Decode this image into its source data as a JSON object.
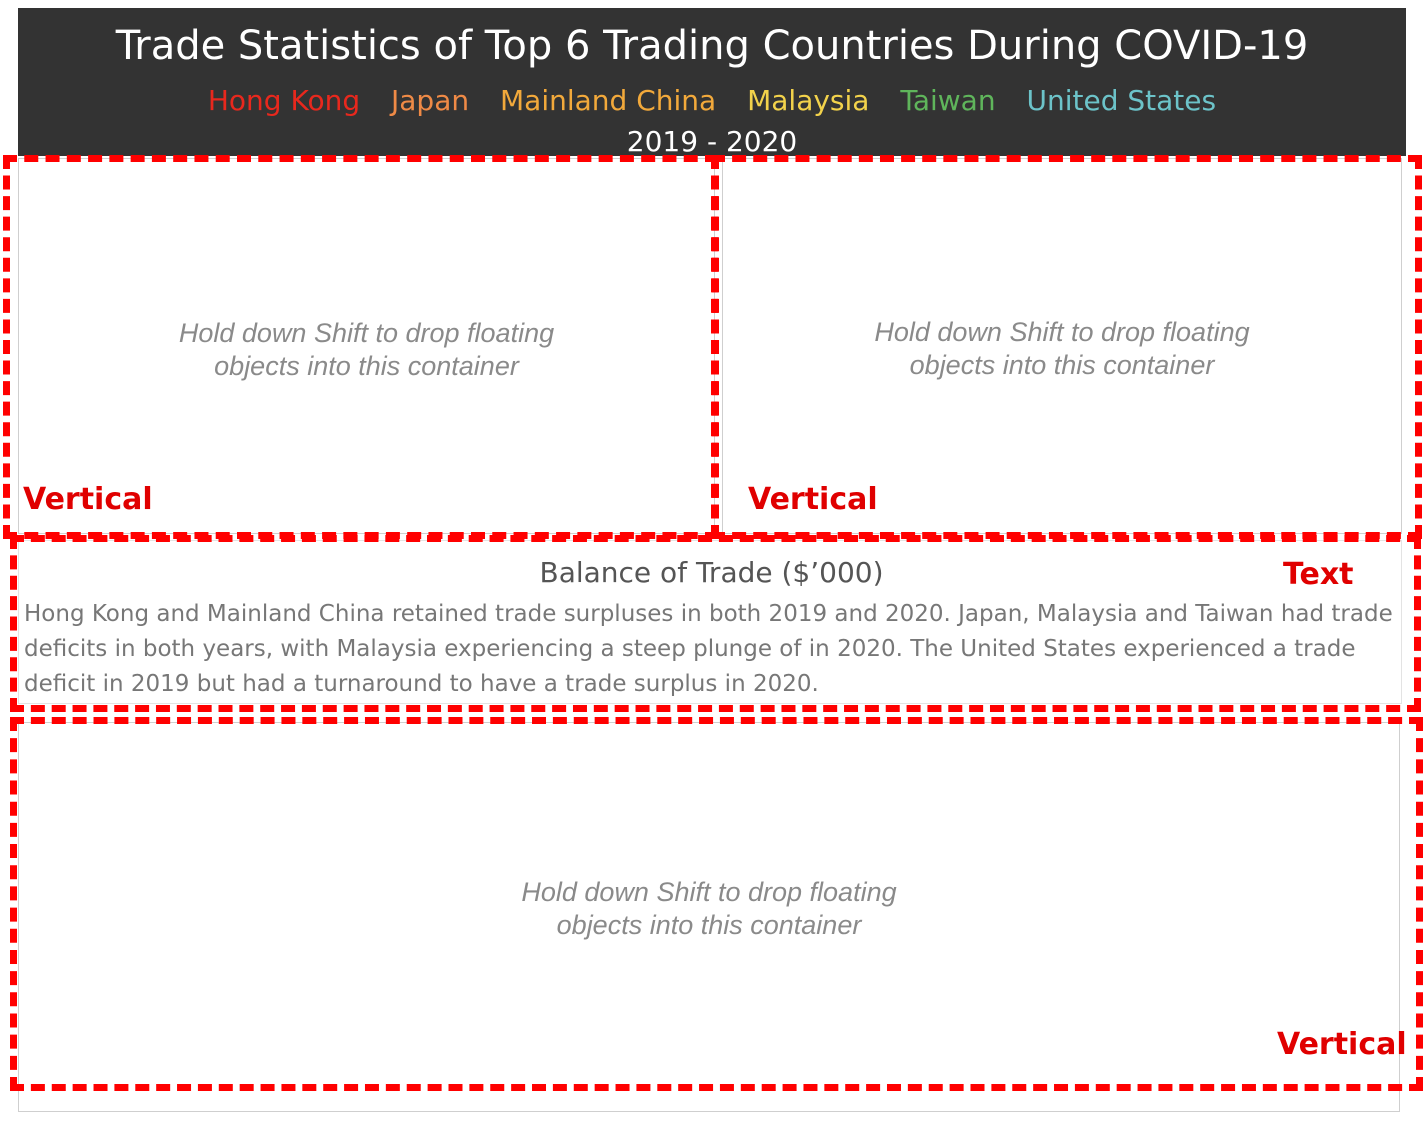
{
  "header": {
    "title": "Trade Statistics of Top 6 Trading Countries During COVID-19",
    "legend": [
      {
        "label": "Hong Kong",
        "color": "#e8281d"
      },
      {
        "label": "Japan",
        "color": "#ef8a46"
      },
      {
        "label": "Mainland China",
        "color": "#f2a93b"
      },
      {
        "label": "Malaysia",
        "color": "#f2d24b"
      },
      {
        "label": "Taiwan",
        "color": "#5fb55b"
      },
      {
        "label": "United States",
        "color": "#6cc3c9"
      }
    ],
    "years": "2019 - 2020"
  },
  "containers": {
    "top_left": {
      "placeholder_line1": "Hold down Shift to drop floating",
      "placeholder_line2": "objects into this container",
      "tag": "Vertical"
    },
    "top_right": {
      "placeholder_line1": "Hold down Shift to drop floating",
      "placeholder_line2": "objects into this container",
      "tag": "Vertical"
    },
    "bottom": {
      "placeholder_line1": "Hold down Shift to drop floating",
      "placeholder_line2": "objects into this container",
      "tag": "Vertical"
    }
  },
  "text_block": {
    "title": "Balance of Trade ($’000)",
    "body": "Hong Kong and Mainland China retained trade surpluses in both 2019 and 2020. Japan, Malaysia and Taiwan had trade deficits in both years, with Malaysia experiencing a steep plunge of  in 2020. The United States experienced a trade deficit in 2019 but had a turnaround to have a trade surplus in 2020.",
    "tag": "Text"
  },
  "annotation_color": "#ff0000"
}
